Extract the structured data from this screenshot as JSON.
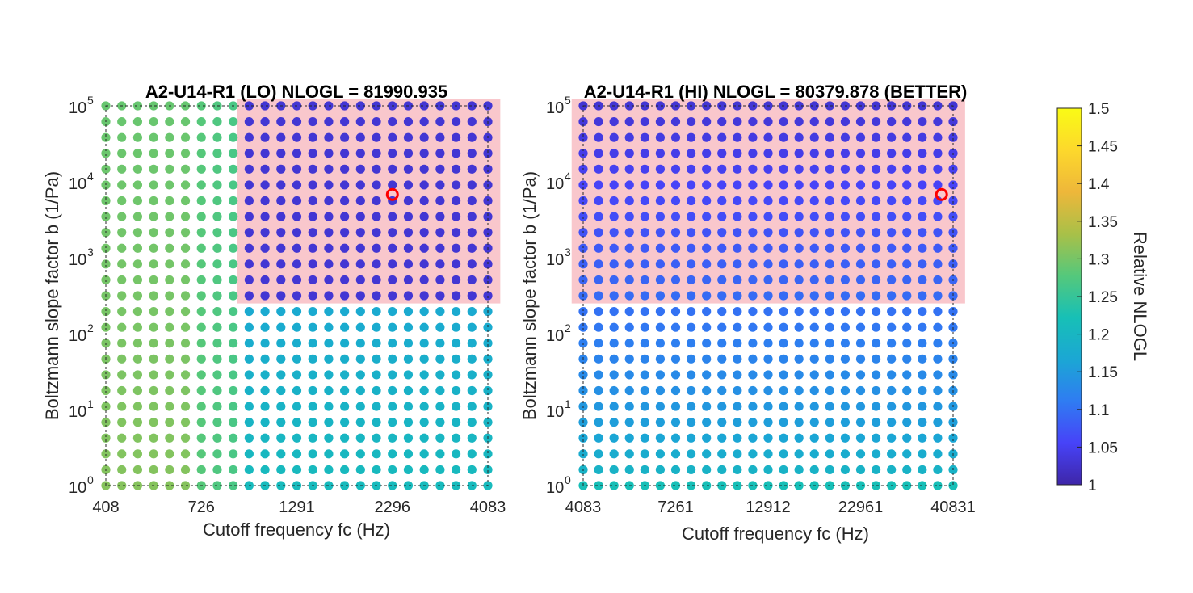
{
  "chart_data": [
    {
      "type": "scatter",
      "title": "A2-U14-R1 (LO) NLOGL = 81990.935",
      "xlabel": "Cutoff frequency fc (Hz)",
      "ylabel": "Boltzmann slope factor b (1/Pa)",
      "x_scale": "log",
      "y_scale": "log",
      "xlim": [
        408,
        4083
      ],
      "ylim": [
        1,
        100000
      ],
      "xticks": [
        "408",
        "726",
        "1291",
        "2296",
        "4083"
      ],
      "yticks": [
        {
          "base": "10",
          "exp": "0"
        },
        {
          "base": "10",
          "exp": "1"
        },
        {
          "base": "10",
          "exp": "2"
        },
        {
          "base": "10",
          "exp": "3"
        },
        {
          "base": "10",
          "exp": "4"
        },
        {
          "base": "10",
          "exp": "5"
        }
      ],
      "grid_size": [
        25,
        25
      ],
      "best_fit": {
        "fc": 2296,
        "b": 6800
      },
      "highlight_region": {
        "fc_min": 900,
        "fc_max": 4400,
        "b_min": 250,
        "b_max": 160000
      },
      "value_model": {
        "left_value": 1.31,
        "mid_value": 1.24,
        "dark_value": 1.03,
        "dark_start_fc": 900,
        "dark_b_min": 250
      }
    },
    {
      "type": "scatter",
      "title": "A2-U14-R1 (HI) NLOGL = 80379.878 (BETTER)",
      "xlabel": "Cutoff frequency fc (Hz)",
      "ylabel": "Boltzmann slope factor b (1/Pa)",
      "x_scale": "log",
      "y_scale": "log",
      "xlim": [
        4083,
        40831
      ],
      "ylim": [
        1,
        100000
      ],
      "xticks": [
        "4083",
        "7261",
        "12912",
        "22961",
        "40831"
      ],
      "yticks": [
        {
          "base": "10",
          "exp": "0"
        },
        {
          "base": "10",
          "exp": "1"
        },
        {
          "base": "10",
          "exp": "2"
        },
        {
          "base": "10",
          "exp": "3"
        },
        {
          "base": "10",
          "exp": "4"
        },
        {
          "base": "10",
          "exp": "5"
        }
      ],
      "grid_size": [
        25,
        25
      ],
      "best_fit": {
        "fc": 38000,
        "b": 6800
      },
      "highlight_region": {
        "fc_min": 3800,
        "fc_max": 44000,
        "b_min": 250,
        "b_max": 160000
      },
      "value_model": {
        "top_value": 1.03,
        "bottom_value": 1.22
      }
    }
  ],
  "colorbar": {
    "label": "Relative NLOGL",
    "min": 1,
    "max": 1.5,
    "ticks": [
      "1",
      "1.05",
      "1.1",
      "1.15",
      "1.2",
      "1.25",
      "1.3",
      "1.35",
      "1.4",
      "1.45",
      "1.5"
    ],
    "colormap": [
      "#3e26a8",
      "#4743f8",
      "#2f7cf2",
      "#1ba7d4",
      "#17c0b6",
      "#55c87b",
      "#a9c048",
      "#eeb73a",
      "#fdd82c",
      "#f9fb15"
    ]
  },
  "colors": {
    "highlight": "#f9c7cc",
    "best_marker": "#ff0000",
    "axis": "#262626"
  }
}
